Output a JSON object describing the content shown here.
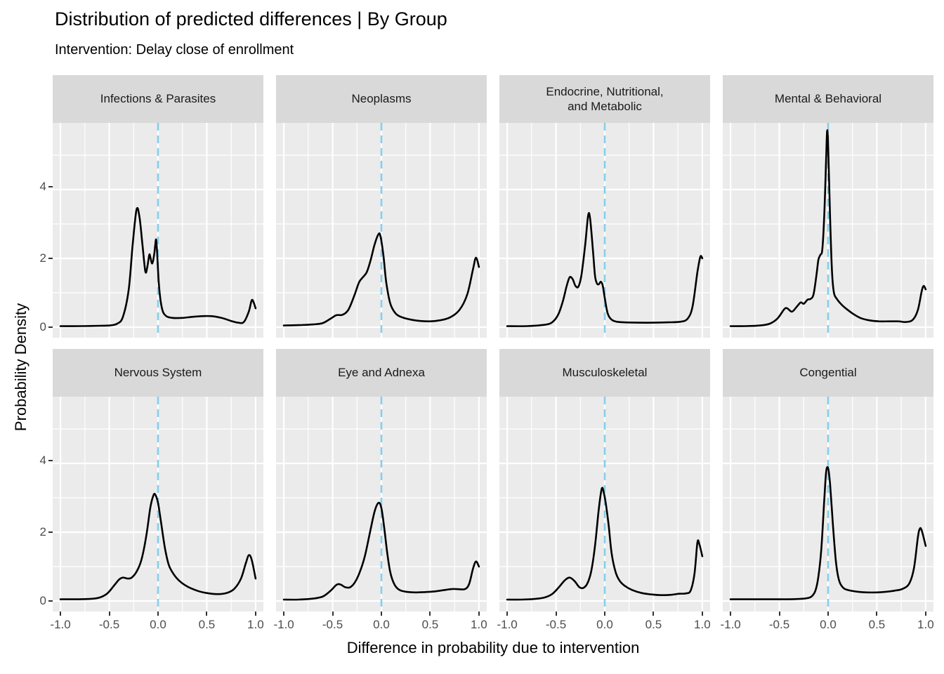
{
  "header": {
    "title": "Distribution of predicted differences | By Group",
    "subtitle": "Intervention: Delay close of enrollment"
  },
  "chart_data": {
    "type": "line",
    "subtype": "faceted-density",
    "layout": "2x4-facet-grid",
    "title": "Distribution of predicted differences | By Group",
    "subtitle": "Intervention: Delay close of enrollment",
    "xlabel": "Difference in probability due to intervention",
    "ylabel": "Probability Density",
    "x_ticks": [
      "-1.0",
      "-0.5",
      "0.0",
      "0.5",
      "1.0"
    ],
    "x_tick_values": [
      -1,
      -0.5,
      0,
      0.5,
      1
    ],
    "y_ticks": [
      "0",
      "2",
      "4"
    ],
    "y_tick_values": [
      0,
      2,
      4
    ],
    "x_minor": [
      -0.75,
      -0.25,
      0.25,
      0.75
    ],
    "y_minor": [
      1,
      3,
      5
    ],
    "xlim": [
      -1.08,
      1.08
    ],
    "ylim": [
      -0.31,
      6.04
    ],
    "grid": true,
    "panel_bg": "#EBEBEB",
    "strip_bg": "#D9D9D9",
    "grid_color": "#FFFFFF",
    "line_color": "#000000",
    "axis_text_color": "#4D4D4D",
    "reference_line": {
      "x": 0,
      "style": "dashed",
      "color": "#87CEEB"
    },
    "facets": [
      {
        "label": "Infections & Parasites",
        "points": [
          [
            -1,
            0.03
          ],
          [
            -0.8,
            0.03
          ],
          [
            -0.6,
            0.04
          ],
          [
            -0.5,
            0.05
          ],
          [
            -0.42,
            0.1
          ],
          [
            -0.36,
            0.3
          ],
          [
            -0.3,
            1.1
          ],
          [
            -0.26,
            2.4
          ],
          [
            -0.22,
            3.42
          ],
          [
            -0.19,
            3.2
          ],
          [
            -0.16,
            2.4
          ],
          [
            -0.13,
            1.62
          ],
          [
            -0.11,
            1.75
          ],
          [
            -0.09,
            2.1
          ],
          [
            -0.08,
            2.05
          ],
          [
            -0.06,
            1.85
          ],
          [
            -0.04,
            2.1
          ],
          [
            -0.03,
            2.35
          ],
          [
            -0.02,
            2.55
          ],
          [
            -0.01,
            2.2
          ],
          [
            0.01,
            1.2
          ],
          [
            0.04,
            0.55
          ],
          [
            0.08,
            0.33
          ],
          [
            0.15,
            0.27
          ],
          [
            0.25,
            0.27
          ],
          [
            0.35,
            0.3
          ],
          [
            0.45,
            0.32
          ],
          [
            0.55,
            0.32
          ],
          [
            0.65,
            0.27
          ],
          [
            0.75,
            0.18
          ],
          [
            0.82,
            0.13
          ],
          [
            0.88,
            0.15
          ],
          [
            0.93,
            0.45
          ],
          [
            0.96,
            0.78
          ],
          [
            0.98,
            0.72
          ],
          [
            1,
            0.55
          ]
        ]
      },
      {
        "label": "Neoplasms",
        "points": [
          [
            -1,
            0.05
          ],
          [
            -0.85,
            0.06
          ],
          [
            -0.7,
            0.08
          ],
          [
            -0.6,
            0.12
          ],
          [
            -0.52,
            0.25
          ],
          [
            -0.46,
            0.35
          ],
          [
            -0.4,
            0.36
          ],
          [
            -0.34,
            0.5
          ],
          [
            -0.28,
            0.9
          ],
          [
            -0.23,
            1.3
          ],
          [
            -0.19,
            1.45
          ],
          [
            -0.15,
            1.6
          ],
          [
            -0.11,
            1.95
          ],
          [
            -0.07,
            2.4
          ],
          [
            -0.03,
            2.7
          ],
          [
            -0.01,
            2.65
          ],
          [
            0.02,
            2.1
          ],
          [
            0.05,
            1.3
          ],
          [
            0.09,
            0.7
          ],
          [
            0.14,
            0.42
          ],
          [
            0.2,
            0.3
          ],
          [
            0.3,
            0.22
          ],
          [
            0.4,
            0.18
          ],
          [
            0.5,
            0.17
          ],
          [
            0.6,
            0.2
          ],
          [
            0.7,
            0.28
          ],
          [
            0.8,
            0.5
          ],
          [
            0.88,
            0.95
          ],
          [
            0.94,
            1.7
          ],
          [
            0.97,
            2.02
          ],
          [
            1,
            1.75
          ]
        ]
      },
      {
        "label": "Endocrine, Nutritional,\nand Metabolic",
        "points": [
          [
            -1,
            0.03
          ],
          [
            -0.8,
            0.03
          ],
          [
            -0.65,
            0.06
          ],
          [
            -0.55,
            0.12
          ],
          [
            -0.48,
            0.35
          ],
          [
            -0.43,
            0.75
          ],
          [
            -0.39,
            1.2
          ],
          [
            -0.36,
            1.45
          ],
          [
            -0.33,
            1.4
          ],
          [
            -0.3,
            1.2
          ],
          [
            -0.27,
            1.18
          ],
          [
            -0.24,
            1.5
          ],
          [
            -0.2,
            2.4
          ],
          [
            -0.17,
            3.25
          ],
          [
            -0.15,
            3.15
          ],
          [
            -0.12,
            2.2
          ],
          [
            -0.1,
            1.5
          ],
          [
            -0.08,
            1.27
          ],
          [
            -0.06,
            1.25
          ],
          [
            -0.04,
            1.32
          ],
          [
            -0.02,
            1.2
          ],
          [
            0,
            0.85
          ],
          [
            0.03,
            0.4
          ],
          [
            0.07,
            0.22
          ],
          [
            0.12,
            0.16
          ],
          [
            0.2,
            0.14
          ],
          [
            0.35,
            0.13
          ],
          [
            0.5,
            0.13
          ],
          [
            0.65,
            0.14
          ],
          [
            0.78,
            0.16
          ],
          [
            0.85,
            0.25
          ],
          [
            0.9,
            0.6
          ],
          [
            0.95,
            1.6
          ],
          [
            0.98,
            2.05
          ],
          [
            1,
            2.0
          ]
        ]
      },
      {
        "label": "Mental & Behavioral",
        "points": [
          [
            -1,
            0.03
          ],
          [
            -0.85,
            0.03
          ],
          [
            -0.7,
            0.05
          ],
          [
            -0.6,
            0.1
          ],
          [
            -0.52,
            0.25
          ],
          [
            -0.45,
            0.52
          ],
          [
            -0.42,
            0.55
          ],
          [
            -0.37,
            0.45
          ],
          [
            -0.32,
            0.6
          ],
          [
            -0.28,
            0.72
          ],
          [
            -0.25,
            0.68
          ],
          [
            -0.21,
            0.8
          ],
          [
            -0.18,
            0.82
          ],
          [
            -0.15,
            0.95
          ],
          [
            -0.12,
            1.5
          ],
          [
            -0.1,
            1.95
          ],
          [
            -0.08,
            2.1
          ],
          [
            -0.06,
            2.25
          ],
          [
            -0.04,
            3.2
          ],
          [
            -0.02,
            4.9
          ],
          [
            -0.01,
            5.7
          ],
          [
            0,
            5.3
          ],
          [
            0.02,
            3.2
          ],
          [
            0.04,
            1.6
          ],
          [
            0.06,
            1.0
          ],
          [
            0.09,
            0.82
          ],
          [
            0.13,
            0.68
          ],
          [
            0.18,
            0.55
          ],
          [
            0.25,
            0.4
          ],
          [
            0.33,
            0.27
          ],
          [
            0.42,
            0.2
          ],
          [
            0.52,
            0.17
          ],
          [
            0.62,
            0.17
          ],
          [
            0.72,
            0.17
          ],
          [
            0.8,
            0.15
          ],
          [
            0.87,
            0.22
          ],
          [
            0.92,
            0.5
          ],
          [
            0.96,
            1.05
          ],
          [
            0.98,
            1.2
          ],
          [
            1,
            1.1
          ]
        ]
      },
      {
        "label": "Nervous System",
        "points": [
          [
            -1,
            0.05
          ],
          [
            -0.85,
            0.05
          ],
          [
            -0.7,
            0.06
          ],
          [
            -0.6,
            0.1
          ],
          [
            -0.52,
            0.22
          ],
          [
            -0.45,
            0.45
          ],
          [
            -0.4,
            0.62
          ],
          [
            -0.36,
            0.68
          ],
          [
            -0.31,
            0.65
          ],
          [
            -0.27,
            0.68
          ],
          [
            -0.22,
            0.85
          ],
          [
            -0.17,
            1.2
          ],
          [
            -0.12,
            1.9
          ],
          [
            -0.08,
            2.7
          ],
          [
            -0.05,
            3.05
          ],
          [
            -0.03,
            3.1
          ],
          [
            0,
            2.85
          ],
          [
            0.03,
            2.3
          ],
          [
            0.07,
            1.55
          ],
          [
            0.11,
            1.05
          ],
          [
            0.16,
            0.78
          ],
          [
            0.22,
            0.58
          ],
          [
            0.3,
            0.42
          ],
          [
            0.4,
            0.3
          ],
          [
            0.5,
            0.23
          ],
          [
            0.6,
            0.2
          ],
          [
            0.7,
            0.23
          ],
          [
            0.78,
            0.35
          ],
          [
            0.85,
            0.65
          ],
          [
            0.9,
            1.1
          ],
          [
            0.93,
            1.33
          ],
          [
            0.96,
            1.2
          ],
          [
            1,
            0.65
          ]
        ]
      },
      {
        "label": "Eye and Adnexa",
        "points": [
          [
            -1,
            0.04
          ],
          [
            -0.85,
            0.04
          ],
          [
            -0.7,
            0.07
          ],
          [
            -0.6,
            0.13
          ],
          [
            -0.52,
            0.3
          ],
          [
            -0.46,
            0.47
          ],
          [
            -0.42,
            0.48
          ],
          [
            -0.37,
            0.4
          ],
          [
            -0.32,
            0.4
          ],
          [
            -0.27,
            0.55
          ],
          [
            -0.22,
            0.85
          ],
          [
            -0.17,
            1.3
          ],
          [
            -0.12,
            1.95
          ],
          [
            -0.07,
            2.6
          ],
          [
            -0.03,
            2.85
          ],
          [
            0,
            2.7
          ],
          [
            0.03,
            2.1
          ],
          [
            0.06,
            1.4
          ],
          [
            0.09,
            0.85
          ],
          [
            0.13,
            0.5
          ],
          [
            0.18,
            0.33
          ],
          [
            0.25,
            0.27
          ],
          [
            0.35,
            0.25
          ],
          [
            0.45,
            0.26
          ],
          [
            0.55,
            0.28
          ],
          [
            0.65,
            0.32
          ],
          [
            0.73,
            0.35
          ],
          [
            0.8,
            0.34
          ],
          [
            0.86,
            0.35
          ],
          [
            0.9,
            0.5
          ],
          [
            0.94,
            0.95
          ],
          [
            0.97,
            1.15
          ],
          [
            1,
            1.0
          ]
        ]
      },
      {
        "label": "Musculoskeletal",
        "points": [
          [
            -1,
            0.04
          ],
          [
            -0.85,
            0.04
          ],
          [
            -0.72,
            0.06
          ],
          [
            -0.62,
            0.1
          ],
          [
            -0.54,
            0.2
          ],
          [
            -0.47,
            0.4
          ],
          [
            -0.41,
            0.6
          ],
          [
            -0.36,
            0.68
          ],
          [
            -0.31,
            0.58
          ],
          [
            -0.26,
            0.4
          ],
          [
            -0.22,
            0.38
          ],
          [
            -0.18,
            0.5
          ],
          [
            -0.14,
            0.85
          ],
          [
            -0.1,
            1.6
          ],
          [
            -0.06,
            2.7
          ],
          [
            -0.03,
            3.27
          ],
          [
            -0.01,
            3.15
          ],
          [
            0.01,
            2.85
          ],
          [
            0.04,
            2.2
          ],
          [
            0.07,
            1.4
          ],
          [
            0.11,
            0.85
          ],
          [
            0.15,
            0.6
          ],
          [
            0.2,
            0.45
          ],
          [
            0.28,
            0.32
          ],
          [
            0.38,
            0.23
          ],
          [
            0.48,
            0.19
          ],
          [
            0.58,
            0.17
          ],
          [
            0.68,
            0.18
          ],
          [
            0.76,
            0.21
          ],
          [
            0.83,
            0.22
          ],
          [
            0.88,
            0.3
          ],
          [
            0.92,
            0.8
          ],
          [
            0.95,
            1.7
          ],
          [
            0.97,
            1.65
          ],
          [
            1,
            1.3
          ]
        ]
      },
      {
        "label": "Congential",
        "points": [
          [
            -1,
            0.05
          ],
          [
            -0.8,
            0.05
          ],
          [
            -0.6,
            0.05
          ],
          [
            -0.4,
            0.05
          ],
          [
            -0.3,
            0.06
          ],
          [
            -0.22,
            0.08
          ],
          [
            -0.17,
            0.13
          ],
          [
            -0.13,
            0.3
          ],
          [
            -0.1,
            0.7
          ],
          [
            -0.07,
            1.5
          ],
          [
            -0.04,
            2.9
          ],
          [
            -0.02,
            3.75
          ],
          [
            0,
            3.86
          ],
          [
            0.02,
            3.4
          ],
          [
            0.05,
            2.2
          ],
          [
            0.08,
            1.15
          ],
          [
            0.11,
            0.62
          ],
          [
            0.15,
            0.4
          ],
          [
            0.2,
            0.32
          ],
          [
            0.3,
            0.27
          ],
          [
            0.4,
            0.25
          ],
          [
            0.5,
            0.25
          ],
          [
            0.6,
            0.27
          ],
          [
            0.68,
            0.3
          ],
          [
            0.76,
            0.35
          ],
          [
            0.83,
            0.5
          ],
          [
            0.88,
            0.95
          ],
          [
            0.92,
            1.85
          ],
          [
            0.94,
            2.1
          ],
          [
            0.96,
            2.05
          ],
          [
            1,
            1.6
          ]
        ]
      }
    ]
  }
}
